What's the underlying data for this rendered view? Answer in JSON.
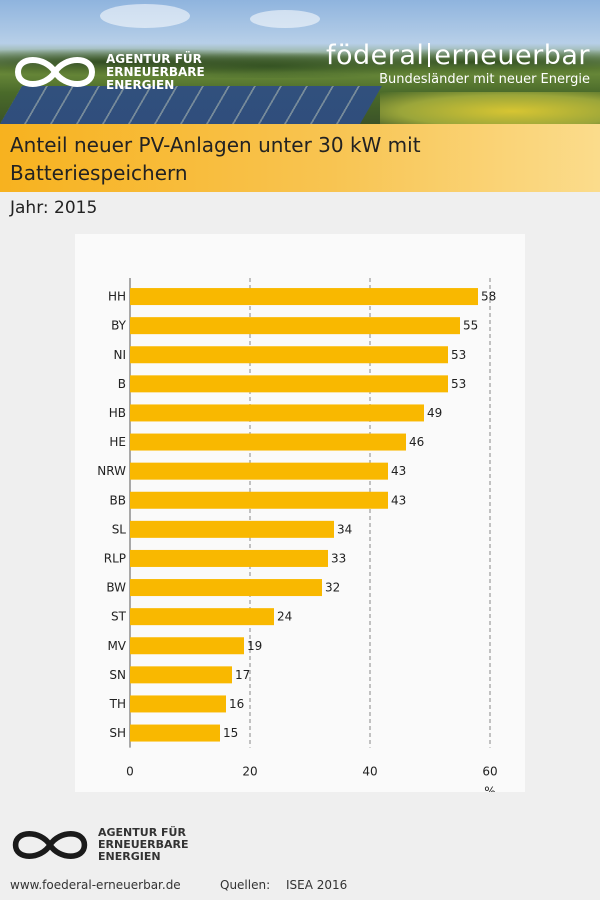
{
  "header": {
    "agency_line1": "AGENTUR FÜR",
    "agency_line2": "ERNEUERBARE",
    "agency_line3": "ENERGIEN",
    "brand_part1": "föderal",
    "brand_part2": "erneuerbar",
    "brand_sub": "Bundesländer mit neuer Energie"
  },
  "title": "Anteil neuer PV-Anlagen unter 30 kW mit Batteriespeichern",
  "year_label": "Jahr: 2015",
  "chart_data": {
    "type": "bar",
    "orientation": "horizontal",
    "categories": [
      "HH",
      "BY",
      "NI",
      "B",
      "HB",
      "HE",
      "NRW",
      "BB",
      "SL",
      "RLP",
      "BW",
      "ST",
      "MV",
      "SN",
      "TH",
      "SH"
    ],
    "values": [
      58,
      55,
      53,
      53,
      49,
      46,
      43,
      43,
      34,
      33,
      32,
      24,
      19,
      17,
      16,
      15
    ],
    "xlim": [
      0,
      60
    ],
    "xticks": [
      0,
      20,
      40,
      60
    ],
    "xlabel": "%",
    "grid": "vertical-dashed",
    "bar_color": "#f9b800"
  },
  "footer": {
    "agency_line1": "AGENTUR FÜR",
    "agency_line2": "ERNEUERBARE",
    "agency_line3": "ENERGIEN",
    "url": "www.foederal-erneuerbar.de",
    "source_label": "Quellen:",
    "source_value": "ISEA 2016"
  }
}
